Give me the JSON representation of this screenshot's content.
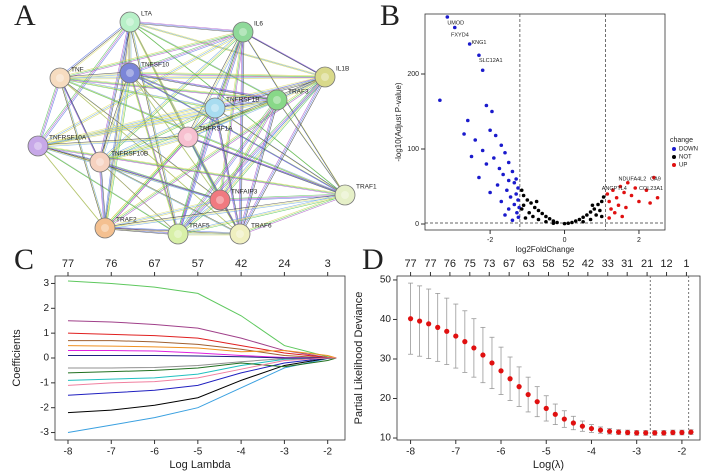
{
  "chart_data": [
    {
      "type": "network",
      "panel_label": "A",
      "nodes": [
        {
          "label": "LTA",
          "color": "#b8f0c8"
        },
        {
          "label": "IL6",
          "color": "#8fd99a"
        },
        {
          "label": "TNF",
          "color": "#f6dcc0"
        },
        {
          "label": "TNFSF10",
          "color": "#7b86d8"
        },
        {
          "label": "IL1B",
          "color": "#d9d98a"
        },
        {
          "label": "TNFRSF1B",
          "color": "#a8dcf0"
        },
        {
          "label": "TRAF3",
          "color": "#88d888"
        },
        {
          "label": "TNFRSF1A",
          "color": "#f7c0d0"
        },
        {
          "label": "TNFRSF10A",
          "color": "#c7a8e8"
        },
        {
          "label": "TNFRSF10B",
          "color": "#f6d2c0"
        },
        {
          "label": "TNFAIP3",
          "color": "#f07a80"
        },
        {
          "label": "TRAF2",
          "color": "#f4c090"
        },
        {
          "label": "TRAF5",
          "color": "#d8f0a8"
        },
        {
          "label": "TRAF6",
          "color": "#f0f0c0"
        },
        {
          "label": "TRAF1",
          "color": "#e6f0c8"
        }
      ]
    },
    {
      "type": "scatter",
      "panel_label": "B",
      "xlabel": "log2FoldChange",
      "ylabel": "-log10(Adjust P-value)",
      "xlim": [
        -3.75,
        2.7
      ],
      "ylim": [
        -8,
        280
      ],
      "xticks": [
        -2,
        0,
        2
      ],
      "yticks": [
        0,
        100,
        200
      ],
      "thresholds": {
        "x": [
          -1.2,
          1.1
        ],
        "y": 1.3
      },
      "legend_title": "change",
      "series": [
        {
          "name": "DOWN",
          "color": "#1a1acc",
          "x": [
            -3.15,
            -2.95,
            -2.55,
            -2.3,
            -3.35,
            -2.2,
            -2.1,
            -1.95,
            -2.6,
            -2.0,
            -1.85,
            -2.4,
            -1.7,
            -2.2,
            -1.6,
            -1.9,
            -1.5,
            -2.1,
            -1.75,
            -1.4,
            -1.65,
            -2.3,
            -1.5,
            -1.35,
            -1.8,
            -1.25,
            -1.55,
            -1.3,
            -2.0,
            -1.45,
            -1.25,
            -1.7,
            -1.35,
            -1.22,
            -1.5,
            -1.28,
            -1.6,
            -1.24,
            -1.4,
            -1.3,
            -2.5,
            -2.7
          ],
          "values": [
            276,
            262,
            240,
            225,
            165,
            205,
            158,
            150,
            138,
            125,
            118,
            112,
            105,
            98,
            95,
            88,
            82,
            80,
            74,
            70,
            66,
            62,
            58,
            55,
            52,
            48,
            45,
            40,
            42,
            36,
            32,
            30,
            26,
            22,
            20,
            15,
            12,
            9,
            5,
            60,
            90,
            120
          ]
        },
        {
          "name": "NOT",
          "color": "#000000",
          "x": [
            -1.15,
            -1.1,
            -1.0,
            -0.9,
            -0.8,
            -0.7,
            -0.6,
            -0.5,
            -0.4,
            -0.3,
            -0.2,
            0,
            0.2,
            0.3,
            0.4,
            0.5,
            0.6,
            0.7,
            0.8,
            0.9,
            1.0,
            1.05,
            -1.1,
            -0.95,
            -0.85,
            -0.7,
            -0.5,
            0.5,
            0.7,
            0.85,
            0.95,
            -1.05,
            -0.3,
            0.1,
            1.0,
            -1.15,
            -0.75,
            0.75
          ],
          "values": [
            45,
            38,
            32,
            28,
            22,
            18,
            14,
            10,
            7,
            4,
            2,
            0.5,
            2,
            4,
            6,
            9,
            12,
            16,
            20,
            26,
            30,
            36,
            25,
            15,
            10,
            6,
            3,
            3,
            6,
            12,
            18,
            8,
            1,
            1,
            10,
            20,
            30,
            25
          ]
        },
        {
          "name": "UP",
          "color": "#e01010",
          "x": [
            1.15,
            1.2,
            1.3,
            1.4,
            1.5,
            1.6,
            1.7,
            1.25,
            1.35,
            1.45,
            1.8,
            1.9,
            2.0,
            2.2,
            2.4,
            2.3,
            1.55,
            1.2,
            1.65,
            2.5
          ],
          "values": [
            40,
            30,
            45,
            35,
            50,
            42,
            55,
            20,
            15,
            25,
            38,
            48,
            30,
            45,
            62,
            28,
            10,
            8,
            22,
            35
          ]
        }
      ],
      "annotations": [
        {
          "text": "UMOD",
          "x": -3.15,
          "y": 268
        },
        {
          "text": "FXYD4",
          "x": -3.05,
          "y": 252
        },
        {
          "text": "KNG1",
          "x": -2.5,
          "y": 242
        },
        {
          "text": "SLC12A1",
          "x": -2.3,
          "y": 218
        },
        {
          "text": "NDUFA4L2",
          "x": 1.45,
          "y": 60
        },
        {
          "text": "CA9",
          "x": 2.3,
          "y": 60
        },
        {
          "text": "ANGPTL4",
          "x": 1.0,
          "y": 47
        },
        {
          "text": "COL23A1",
          "x": 2.0,
          "y": 47
        }
      ]
    },
    {
      "type": "line",
      "panel_label": "C",
      "xlabel": "Log Lambda",
      "ylabel": "Coefficients",
      "xlim": [
        -8.3,
        -1.6
      ],
      "ylim": [
        -3.3,
        3.3
      ],
      "xticks": [
        -8,
        -7,
        -6,
        -5,
        -4,
        -3,
        -2
      ],
      "yticks": [
        -3,
        -2,
        -1,
        0,
        1,
        2,
        3
      ],
      "top_xticks": [
        {
          "value": -8,
          "label": "77"
        },
        {
          "value": -7,
          "label": "76"
        },
        {
          "value": -6,
          "label": "67"
        },
        {
          "value": -5,
          "label": "57"
        },
        {
          "value": -4,
          "label": "42"
        },
        {
          "value": -3,
          "label": "24"
        },
        {
          "value": -2,
          "label": "3"
        }
      ],
      "x": [
        -8,
        -7,
        -6,
        -5,
        -4,
        -3,
        -2,
        -1.8
      ],
      "series": [
        {
          "color": "#5ec85e",
          "values": [
            3.1,
            3.0,
            2.85,
            2.6,
            1.7,
            0.5,
            0.05,
            0
          ]
        },
        {
          "color": "#a0408a",
          "values": [
            1.5,
            1.45,
            1.35,
            1.2,
            0.8,
            0.3,
            0.02,
            0
          ]
        },
        {
          "color": "#3aa0e0",
          "values": [
            -3.0,
            -2.7,
            -2.4,
            -2.0,
            -1.2,
            -0.4,
            -0.02,
            0
          ]
        },
        {
          "color": "#000000",
          "values": [
            -2.2,
            -2.1,
            -1.9,
            -1.6,
            -0.9,
            -0.3,
            -0.01,
            0
          ]
        },
        {
          "color": "#e02020",
          "values": [
            1.0,
            0.95,
            0.9,
            0.8,
            0.5,
            0.2,
            0.02,
            0
          ]
        },
        {
          "color": "#2020c0",
          "values": [
            -1.5,
            -1.4,
            -1.3,
            -1.1,
            -0.6,
            -0.2,
            0,
            0
          ]
        },
        {
          "color": "#a06030",
          "values": [
            0.7,
            0.7,
            0.65,
            0.55,
            0.35,
            0.1,
            0,
            0
          ]
        },
        {
          "color": "#20c0c0",
          "values": [
            -0.9,
            -0.85,
            -0.8,
            -0.65,
            -0.3,
            -0.05,
            0,
            0
          ]
        },
        {
          "color": "#e020e0",
          "values": [
            0.3,
            0.3,
            0.28,
            0.2,
            0.1,
            0.02,
            0,
            0
          ]
        },
        {
          "color": "#909090",
          "values": [
            -0.4,
            -0.4,
            -0.38,
            -0.3,
            -0.15,
            -0.02,
            0,
            0
          ]
        },
        {
          "color": "#f09020",
          "values": [
            0.5,
            0.48,
            0.45,
            0.4,
            0.25,
            0.3,
            0.1,
            0
          ]
        },
        {
          "color": "#207020",
          "values": [
            -0.6,
            -0.55,
            -0.5,
            -0.4,
            -0.2,
            -0.35,
            -0.1,
            0
          ]
        },
        {
          "color": "#202080",
          "values": [
            0.1,
            0.1,
            0.1,
            0.08,
            0.05,
            0,
            0,
            0
          ]
        },
        {
          "color": "#f080a0",
          "values": [
            -1.1,
            -1.0,
            -0.95,
            -0.8,
            -0.45,
            -0.1,
            0,
            0
          ]
        }
      ]
    },
    {
      "type": "errorbar",
      "panel_label": "D",
      "xlabel": "Log(λ)",
      "ylabel": "Partial Likelihood Deviance",
      "xlim": [
        -8.3,
        -1.6
      ],
      "ylim": [
        9.5,
        51
      ],
      "xticks": [
        -8,
        -7,
        -6,
        -5,
        -4,
        -3,
        -2
      ],
      "yticks": [
        10,
        20,
        30,
        40,
        50
      ],
      "top_xticks": [
        {
          "value": -8,
          "label": "77"
        },
        {
          "value": -7.56,
          "label": "77"
        },
        {
          "value": -7.13,
          "label": "76"
        },
        {
          "value": -6.69,
          "label": "75"
        },
        {
          "value": -6.26,
          "label": "73"
        },
        {
          "value": -5.82,
          "label": "67"
        },
        {
          "value": -5.39,
          "label": "63"
        },
        {
          "value": -4.95,
          "label": "58"
        },
        {
          "value": -4.51,
          "label": "52"
        },
        {
          "value": -4.08,
          "label": "42"
        },
        {
          "value": -3.64,
          "label": "33"
        },
        {
          "value": -3.21,
          "label": "31"
        },
        {
          "value": -2.77,
          "label": "21"
        },
        {
          "value": -2.34,
          "label": "12"
        },
        {
          "value": -1.9,
          "label": "1"
        }
      ],
      "vlines": [
        -2.7,
        -1.85
      ],
      "color": "#e01010",
      "x": [
        -8,
        -7.8,
        -7.6,
        -7.4,
        -7.2,
        -7.0,
        -6.8,
        -6.6,
        -6.4,
        -6.2,
        -6.0,
        -5.8,
        -5.6,
        -5.4,
        -5.2,
        -5.0,
        -4.8,
        -4.6,
        -4.4,
        -4.2,
        -4.0,
        -3.8,
        -3.6,
        -3.4,
        -3.2,
        -3.0,
        -2.8,
        -2.6,
        -2.4,
        -2.2,
        -2.0,
        -1.8
      ],
      "values": [
        40.2,
        39.6,
        38.9,
        38.0,
        37.0,
        35.8,
        34.4,
        32.8,
        31.0,
        29.0,
        27.0,
        25.0,
        23.0,
        21.0,
        19.2,
        17.5,
        16.0,
        14.8,
        13.8,
        13.0,
        12.4,
        12.0,
        11.7,
        11.5,
        11.4,
        11.3,
        11.3,
        11.3,
        11.3,
        11.4,
        11.4,
        11.5
      ],
      "errors": [
        9,
        8.9,
        8.8,
        8.6,
        8.4,
        8.1,
        7.8,
        7.4,
        7.0,
        6.5,
        6.0,
        5.5,
        5.0,
        4.4,
        3.8,
        3.2,
        2.6,
        2.1,
        1.7,
        1.3,
        1.0,
        0.8,
        0.7,
        0.6,
        0.6,
        0.6,
        0.6,
        0.6,
        0.6,
        0.6,
        0.6,
        0.6
      ]
    }
  ]
}
